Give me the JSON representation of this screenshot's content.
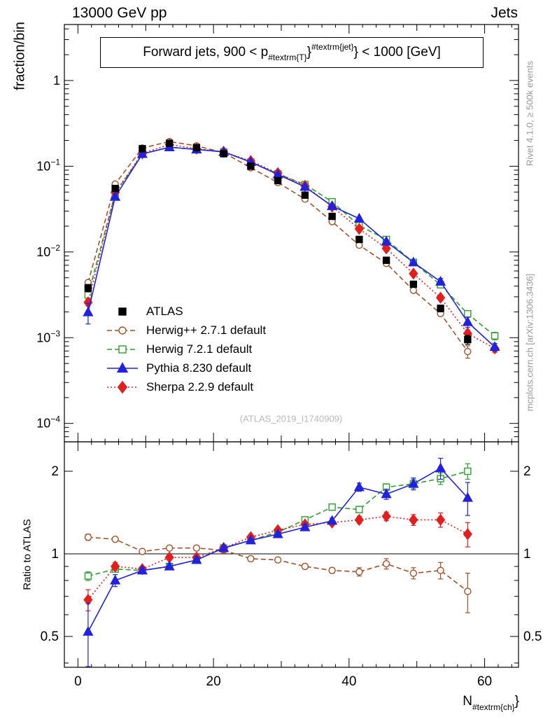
{
  "header": {
    "left": "13000 GeV pp",
    "right": "Jets"
  },
  "title": {
    "pre": "Forward jets, 900 < p",
    "sub": "#textrm{T}",
    "mid": "}",
    "sup": "#textrm{jet}",
    "post": "} < 1000 [GeV]"
  },
  "axes": {
    "y_label": "fraction/bin",
    "ratio_label": "Ratio to ATLAS",
    "x_label_pre": "N",
    "x_label_sub": "#textrm{ch}",
    "x_label_post": "}"
  },
  "side_notes": {
    "top_right": "Rivet 4.1.0, ≥ 500k events",
    "bottom_right": "mcplots.cern.ch [arXiv:1306.3436]"
  },
  "watermark": "(ATLAS_2019_I1740909)",
  "chart_data": {
    "type": "scatter",
    "title": "Forward jets, 900 < pT(jet) < 1000 [GeV]",
    "xlabel": "N_ch",
    "ylabel": "fraction/bin",
    "ratio_ylabel": "Ratio to ATLAS",
    "x_scale": "linear",
    "y_scale": "log",
    "xlim": [
      -2,
      65
    ],
    "ylim_main": [
      6.1e-05,
      4.5
    ],
    "ylim_ratio": [
      0.386,
      2.56
    ],
    "x_ticks_major": [
      0,
      20,
      40,
      60
    ],
    "y_ticks_exp": [
      0,
      -1,
      -2,
      -3,
      -4
    ],
    "ratio_ticks": [
      0.5,
      1,
      2
    ],
    "legend_position": "middle-left",
    "grid": false,
    "x": [
      1.5,
      5.5,
      9.5,
      13.5,
      17.5,
      21.5,
      25.5,
      29.5,
      33.5,
      37.5,
      41.5,
      45.5,
      49.5,
      53.5,
      57.5,
      61.5
    ],
    "series": [
      {
        "name": "ATLAS",
        "marker": "square",
        "filled": true,
        "color": "#000000",
        "line": "none",
        "msize": 9,
        "values": [
          0.0038,
          0.055,
          0.16,
          0.185,
          0.165,
          0.14,
          0.1,
          0.068,
          0.046,
          0.026,
          0.014,
          0.008,
          0.0042,
          0.0022,
          0.00095,
          null
        ],
        "rel_err": [
          0.1,
          0.04,
          0.03,
          0.03,
          0.03,
          0.03,
          0.03,
          0.03,
          0.04,
          0.04,
          0.05,
          0.06,
          0.07,
          0.09,
          0.12,
          null
        ],
        "ratio": null
      },
      {
        "name": "Herwig++ 2.7.1 default",
        "marker": "circle",
        "filled": false,
        "color": "#a0522d",
        "line": "dashed",
        "msize": 9,
        "values": [
          0.0044,
          0.062,
          0.163,
          0.194,
          0.173,
          0.144,
          0.096,
          0.0646,
          0.0414,
          0.0226,
          0.012,
          0.00736,
          0.00357,
          0.00191,
          0.00069,
          null
        ],
        "ratio": [
          1.15,
          1.13,
          1.02,
          1.05,
          1.05,
          1.03,
          0.96,
          0.95,
          0.9,
          0.87,
          0.86,
          0.92,
          0.85,
          0.87,
          0.73,
          null
        ],
        "ratio_err": [
          0.03,
          0.02,
          0.02,
          0.02,
          0.02,
          0.02,
          0.02,
          0.02,
          0.02,
          0.02,
          0.03,
          0.04,
          0.04,
          0.06,
          0.12,
          null
        ]
      },
      {
        "name": "Herwig 7.2.1 default",
        "marker": "square",
        "filled": false,
        "color": "#2f9e2f",
        "line": "dashed",
        "msize": 9,
        "values": [
          0.00315,
          0.0484,
          0.139,
          0.1665,
          0.157,
          0.147,
          0.112,
          0.0816,
          0.0612,
          0.0385,
          0.0203,
          0.014,
          0.00756,
          0.00414,
          0.0019,
          0.00105
        ],
        "ratio": [
          0.83,
          0.88,
          0.87,
          0.9,
          0.95,
          1.05,
          1.12,
          1.2,
          1.33,
          1.48,
          1.45,
          1.75,
          1.8,
          1.88,
          2.0,
          null
        ],
        "ratio_err": [
          0.03,
          0.02,
          0.02,
          0.02,
          0.02,
          0.02,
          0.02,
          0.02,
          0.03,
          0.03,
          0.04,
          0.05,
          0.07,
          0.09,
          0.13,
          null
        ]
      },
      {
        "name": "Pythia 8.230 default",
        "marker": "triangle",
        "filled": true,
        "color": "#2222dd",
        "line": "solid",
        "msize": 11,
        "values": [
          0.00198,
          0.044,
          0.139,
          0.1665,
          0.157,
          0.147,
          0.112,
          0.0802,
          0.0575,
          0.0343,
          0.0245,
          0.0132,
          0.00756,
          0.00451,
          0.00152,
          0.00078
        ],
        "ratio": [
          0.52,
          0.8,
          0.87,
          0.9,
          0.95,
          1.05,
          1.12,
          1.18,
          1.25,
          1.32,
          1.75,
          1.65,
          1.8,
          2.05,
          1.6,
          null
        ],
        "ratio_err": [
          0.14,
          0.04,
          0.02,
          0.02,
          0.02,
          0.02,
          0.02,
          0.02,
          0.03,
          0.03,
          0.06,
          0.07,
          0.09,
          0.18,
          0.22,
          null
        ]
      },
      {
        "name": "Sherpa 2.2.9 default",
        "marker": "diamond",
        "filled": true,
        "color": "#e02020",
        "line": "dotted",
        "msize": 11,
        "values": [
          0.00258,
          0.0495,
          0.141,
          0.179,
          0.16,
          0.147,
          0.115,
          0.083,
          0.0589,
          0.0338,
          0.0186,
          0.011,
          0.00559,
          0.00293,
          0.00112,
          0.00075
        ],
        "ratio": [
          0.68,
          0.9,
          0.88,
          0.97,
          0.97,
          1.05,
          1.15,
          1.22,
          1.28,
          1.3,
          1.33,
          1.37,
          1.33,
          1.33,
          1.18,
          null
        ],
        "ratio_err": [
          0.06,
          0.03,
          0.02,
          0.02,
          0.02,
          0.02,
          0.02,
          0.02,
          0.02,
          0.03,
          0.04,
          0.05,
          0.06,
          0.08,
          0.12,
          null
        ]
      }
    ]
  }
}
